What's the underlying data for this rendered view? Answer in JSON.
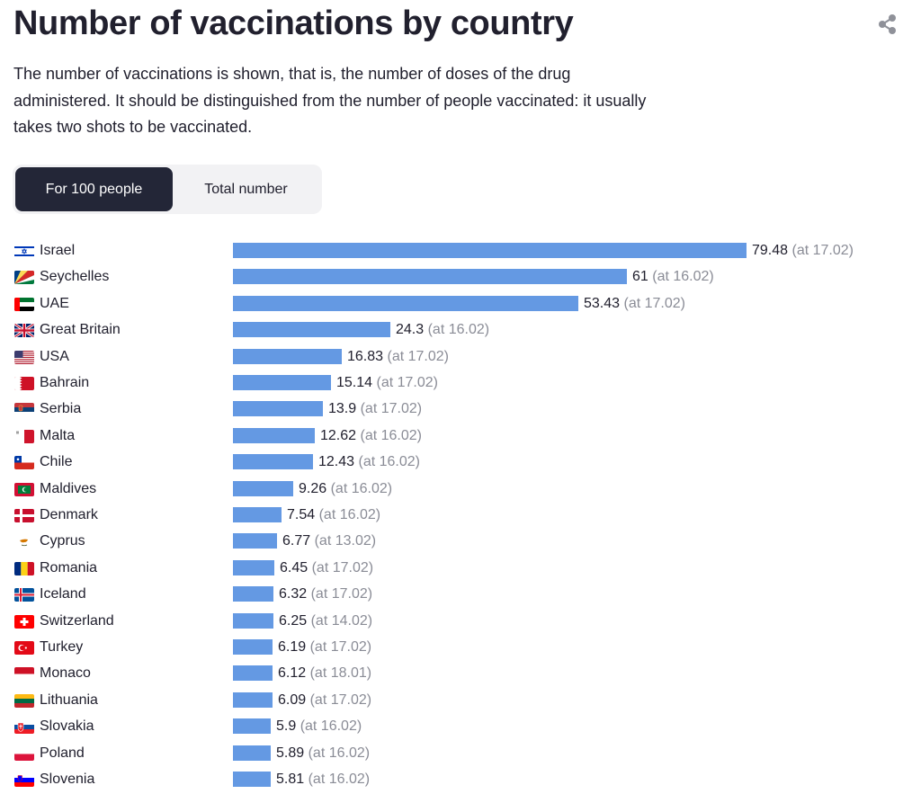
{
  "title": "Number of vaccinations by country",
  "subtitle": "The number of vaccinations is shown, that is, the number of doses of the drug administered. It should be distinguished from the number of people vaccinated: it usually takes two shots to be vaccinated.",
  "toggle": {
    "active_label": "For 100 people",
    "other_label": "Total number"
  },
  "share_icon": "share-icon",
  "colors": {
    "bar": "#6499e3",
    "active_toggle": "#232637",
    "date_text": "#8a8c96"
  },
  "chart_data": {
    "type": "bar",
    "orientation": "horizontal",
    "title": "Number of vaccinations by country",
    "categories": [
      "Israel",
      "Seychelles",
      "UAE",
      "Great Britain",
      "USA",
      "Bahrain",
      "Serbia",
      "Malta",
      "Chile",
      "Maldives",
      "Denmark",
      "Cyprus",
      "Romania",
      "Iceland",
      "Switzerland",
      "Turkey",
      "Monaco",
      "Lithuania",
      "Slovakia",
      "Poland",
      "Slovenia"
    ],
    "values": [
      79.48,
      61,
      53.43,
      24.3,
      16.83,
      15.14,
      13.9,
      12.62,
      12.43,
      9.26,
      7.54,
      6.77,
      6.45,
      6.32,
      6.25,
      6.19,
      6.12,
      6.09,
      5.9,
      5.89,
      5.81
    ],
    "value_labels": [
      "79.48",
      "61",
      "53.43",
      "24.3",
      "16.83",
      "15.14",
      "13.9",
      "12.62",
      "12.43",
      "9.26",
      "7.54",
      "6.77",
      "6.45",
      "6.32",
      "6.25",
      "6.19",
      "6.12",
      "6.09",
      "5.9",
      "5.89",
      "5.81"
    ],
    "dates": [
      "(at 17.02)",
      "(at 16.02)",
      "(at 17.02)",
      "(at 16.02)",
      "(at 17.02)",
      "(at 17.02)",
      "(at 17.02)",
      "(at 16.02)",
      "(at 16.02)",
      "(at 16.02)",
      "(at 16.02)",
      "(at 13.02)",
      "(at 17.02)",
      "(at 17.02)",
      "(at 14.02)",
      "(at 17.02)",
      "(at 18.01)",
      "(at 17.02)",
      "(at 16.02)",
      "(at 16.02)",
      "(at 16.02)"
    ],
    "flags": [
      "israel-flag-icon",
      "seychelles-flag-icon",
      "uae-flag-icon",
      "great-britain-flag-icon",
      "usa-flag-icon",
      "bahrain-flag-icon",
      "serbia-flag-icon",
      "malta-flag-icon",
      "chile-flag-icon",
      "maldives-flag-icon",
      "denmark-flag-icon",
      "cyprus-flag-icon",
      "romania-flag-icon",
      "iceland-flag-icon",
      "switzerland-flag-icon",
      "turkey-flag-icon",
      "monaco-flag-icon",
      "lithuania-flag-icon",
      "slovakia-flag-icon",
      "poland-flag-icon",
      "slovenia-flag-icon"
    ],
    "xlim": [
      0,
      79.48
    ],
    "grid": false,
    "legend": "none"
  }
}
